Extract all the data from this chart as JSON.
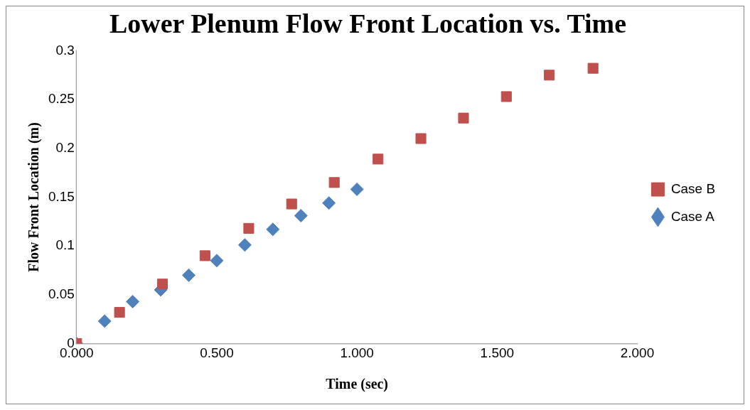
{
  "chart_data": {
    "type": "scatter",
    "title": "Lower Plenum Flow Front Location vs. Time",
    "xlabel": "Time (sec)",
    "ylabel": "Flow Front Location (m)",
    "series": [
      {
        "name": "Case B",
        "color": "#c0504d",
        "marker": "square",
        "x": [
          0,
          0.153,
          0.306,
          0.458,
          0.614,
          0.767,
          0.919,
          1.075,
          1.228,
          1.38,
          1.533,
          1.686,
          1.842
        ],
        "values": [
          0,
          0.032,
          0.061,
          0.09,
          0.118,
          0.143,
          0.165,
          0.189,
          0.21,
          0.231,
          0.253,
          0.275,
          0.282
        ]
      },
      {
        "name": "Case A",
        "color": "#4f81bd",
        "marker": "diamond",
        "x": [
          0,
          0.1,
          0.2,
          0.3,
          0.4,
          0.5,
          0.6,
          0.7,
          0.8,
          0.9,
          1.0
        ],
        "values": [
          0,
          0.023,
          0.043,
          0.055,
          0.07,
          0.085,
          0.101,
          0.117,
          0.131,
          0.144,
          0.158
        ]
      }
    ],
    "xlim": [
      0,
      2
    ],
    "xticks": [
      {
        "value": 0,
        "label": "0.000"
      },
      {
        "value": 0.5,
        "label": "0.500"
      },
      {
        "value": 1,
        "label": "1.000"
      },
      {
        "value": 1.5,
        "label": "1.500"
      },
      {
        "value": 2,
        "label": "2.000"
      }
    ],
    "ylim": [
      0,
      0.3
    ],
    "yticks": [
      0,
      0.05,
      0.1,
      0.15,
      0.2,
      0.25,
      0.3
    ],
    "grid": false,
    "legend": "right"
  }
}
